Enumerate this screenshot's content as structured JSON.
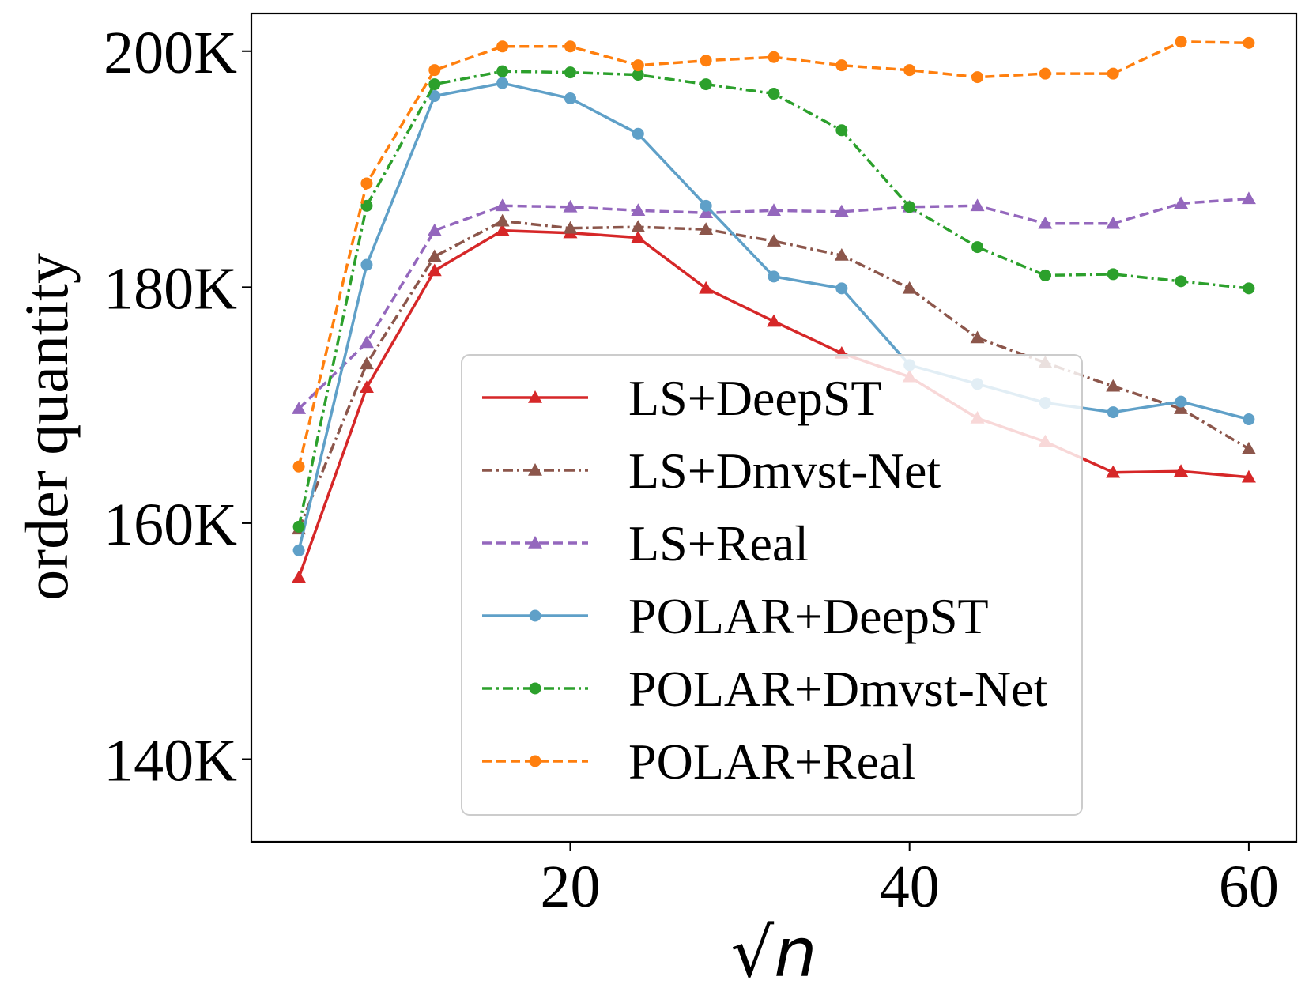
{
  "chart_data": {
    "type": "line",
    "title": "",
    "xlabel": "√n",
    "ylabel": "order quantity",
    "xlim": [
      1.2,
      62.8
    ],
    "ylim": [
      133000,
      203200
    ],
    "xticks": [
      20,
      40,
      60
    ],
    "xtick_labels": [
      "20",
      "40",
      "60"
    ],
    "yticks": [
      140000,
      160000,
      180000,
      200000
    ],
    "ytick_labels": [
      "140K",
      "160K",
      "180K",
      "200K"
    ],
    "grid": false,
    "legend_position": "lower-center",
    "x": [
      4,
      8,
      12,
      16,
      20,
      24,
      28,
      32,
      36,
      40,
      44,
      48,
      52,
      56,
      60
    ],
    "series": [
      {
        "name": "LS+DeepST",
        "color": "#d62728",
        "dash": "solid",
        "marker": "triangle",
        "values": [
          155400,
          171500,
          181400,
          184800,
          184600,
          184200,
          179900,
          177100,
          174400,
          172400,
          168900,
          166900,
          164300,
          164400,
          163900
        ]
      },
      {
        "name": "LS+Dmvst-Net",
        "color": "#8c564b",
        "dash": "dashdot",
        "marker": "triangle",
        "values": [
          159500,
          173500,
          182600,
          185600,
          185000,
          185100,
          184900,
          183900,
          182700,
          179900,
          175700,
          173600,
          171600,
          169700,
          166300
        ]
      },
      {
        "name": "LS+Real",
        "color": "#9467bd",
        "dash": "dashed",
        "marker": "triangle",
        "values": [
          169700,
          175300,
          184800,
          186900,
          186800,
          186500,
          186300,
          186500,
          186400,
          186800,
          186900,
          185400,
          185400,
          187100,
          187500
        ]
      },
      {
        "name": "POLAR+DeepST",
        "color": "#5fa0c8",
        "dash": "solid",
        "marker": "circle",
        "values": [
          157700,
          181900,
          196200,
          197300,
          196000,
          193000,
          186900,
          180900,
          179900,
          173400,
          171800,
          170200,
          169400,
          170300,
          168800
        ]
      },
      {
        "name": "POLAR+Dmvst-Net",
        "color": "#2ca02c",
        "dash": "dashdot",
        "marker": "circle",
        "values": [
          159700,
          186900,
          197200,
          198300,
          198200,
          198000,
          197200,
          196400,
          193300,
          186800,
          183400,
          181000,
          181100,
          180500,
          179900
        ]
      },
      {
        "name": "POLAR+Real",
        "color": "#ff7f0e",
        "dash": "dashed",
        "marker": "circle",
        "values": [
          164800,
          188800,
          198400,
          200400,
          200400,
          198800,
          199200,
          199500,
          198800,
          198400,
          197800,
          198100,
          198100,
          200800,
          200700
        ]
      }
    ]
  }
}
